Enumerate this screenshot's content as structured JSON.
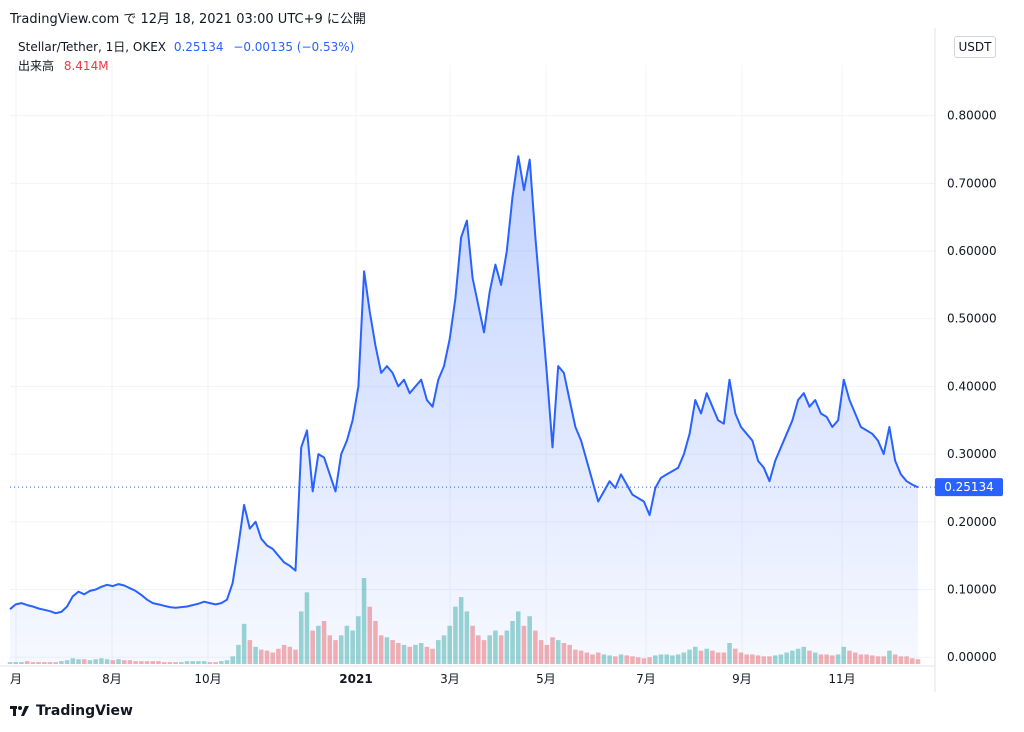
{
  "header": {
    "text": "TradingView.com で 12月 18, 2021 03:00 UTC+9 に公開"
  },
  "legend": {
    "symbol": "Stellar/Tether, 1日, OKEX",
    "last": "0.25134",
    "change": "−0.00135 (−0.53%)"
  },
  "volume": {
    "label": "出来高",
    "value": "8.414M"
  },
  "currency_button": "USDT",
  "brand": "TradingView",
  "colors": {
    "line": "#2962ff",
    "area": "#2962ff",
    "up_volume": "#26a69a",
    "down_volume": "#ef5350",
    "grid": "#f0f3fa"
  },
  "chart_data": {
    "type": "area",
    "x_tick_labels": [
      "月",
      "8月",
      "10月",
      "2021",
      "3月",
      "5月",
      "7月",
      "9月",
      "11月"
    ],
    "y_tick_labels": [
      "0.80000",
      "0.70000",
      "0.60000",
      "0.50000",
      "0.40000",
      "0.30000",
      "0.20000",
      "0.10000",
      "0.00000"
    ],
    "ylim": [
      -0.01,
      0.86
    ],
    "last_value_label": "0.25134",
    "last_value": 0.25134,
    "grid": true,
    "series": [
      {
        "values": [
          0.071,
          0.078,
          0.08,
          0.077,
          0.075,
          0.072,
          0.07,
          0.068,
          0.065,
          0.067,
          0.075,
          0.09,
          0.097,
          0.093,
          0.098,
          0.1,
          0.104,
          0.107,
          0.105,
          0.108,
          0.106,
          0.102,
          0.098,
          0.092,
          0.085,
          0.08,
          0.078,
          0.076,
          0.074,
          0.073,
          0.074,
          0.075,
          0.077,
          0.079,
          0.082,
          0.08,
          0.078,
          0.08,
          0.085,
          0.11,
          0.165,
          0.225,
          0.19,
          0.2,
          0.175,
          0.165,
          0.16,
          0.15,
          0.14,
          0.135,
          0.128,
          0.31,
          0.335,
          0.245,
          0.3,
          0.295,
          0.27,
          0.245,
          0.3,
          0.32,
          0.35,
          0.4,
          0.57,
          0.51,
          0.46,
          0.42,
          0.43,
          0.42,
          0.4,
          0.41,
          0.39,
          0.4,
          0.41,
          0.38,
          0.37,
          0.41,
          0.43,
          0.47,
          0.53,
          0.62,
          0.645,
          0.56,
          0.52,
          0.48,
          0.54,
          0.58,
          0.55,
          0.6,
          0.68,
          0.74,
          0.69,
          0.735,
          0.62,
          0.52,
          0.42,
          0.31,
          0.43,
          0.42,
          0.38,
          0.34,
          0.32,
          0.29,
          0.26,
          0.23,
          0.245,
          0.26,
          0.25,
          0.27,
          0.255,
          0.24,
          0.235,
          0.23,
          0.21,
          0.25,
          0.265,
          0.27,
          0.275,
          0.28,
          0.3,
          0.33,
          0.38,
          0.36,
          0.39,
          0.37,
          0.35,
          0.345,
          0.41,
          0.36,
          0.34,
          0.33,
          0.32,
          0.29,
          0.28,
          0.26,
          0.29,
          0.31,
          0.33,
          0.35,
          0.38,
          0.39,
          0.37,
          0.38,
          0.36,
          0.355,
          0.34,
          0.35,
          0.41,
          0.38,
          0.36,
          0.34,
          0.335,
          0.33,
          0.32,
          0.3,
          0.34,
          0.29,
          0.27,
          0.26,
          0.255,
          0.251
        ]
      }
    ],
    "volume": [
      0.02,
      0.02,
      0.02,
      0.03,
      0.02,
      0.02,
      0.02,
      0.02,
      0.02,
      0.03,
      0.04,
      0.06,
      0.05,
      0.05,
      0.04,
      0.05,
      0.06,
      0.05,
      0.04,
      0.05,
      0.04,
      0.04,
      0.03,
      0.03,
      0.03,
      0.03,
      0.03,
      0.02,
      0.02,
      0.02,
      0.02,
      0.03,
      0.03,
      0.03,
      0.03,
      0.02,
      0.02,
      0.03,
      0.04,
      0.08,
      0.2,
      0.42,
      0.25,
      0.18,
      0.15,
      0.14,
      0.12,
      0.16,
      0.2,
      0.18,
      0.15,
      0.55,
      0.75,
      0.35,
      0.4,
      0.45,
      0.3,
      0.25,
      0.3,
      0.4,
      0.35,
      0.5,
      0.9,
      0.6,
      0.45,
      0.3,
      0.28,
      0.25,
      0.22,
      0.2,
      0.18,
      0.2,
      0.22,
      0.18,
      0.16,
      0.25,
      0.3,
      0.4,
      0.6,
      0.7,
      0.55,
      0.4,
      0.3,
      0.25,
      0.3,
      0.35,
      0.3,
      0.35,
      0.45,
      0.55,
      0.4,
      0.5,
      0.35,
      0.25,
      0.2,
      0.28,
      0.25,
      0.22,
      0.2,
      0.15,
      0.14,
      0.12,
      0.1,
      0.12,
      0.1,
      0.09,
      0.08,
      0.1,
      0.09,
      0.08,
      0.07,
      0.06,
      0.07,
      0.09,
      0.1,
      0.1,
      0.09,
      0.1,
      0.12,
      0.15,
      0.18,
      0.14,
      0.16,
      0.14,
      0.12,
      0.12,
      0.22,
      0.16,
      0.12,
      0.1,
      0.1,
      0.09,
      0.08,
      0.08,
      0.09,
      0.1,
      0.12,
      0.14,
      0.16,
      0.18,
      0.14,
      0.12,
      0.1,
      0.1,
      0.09,
      0.1,
      0.18,
      0.14,
      0.12,
      0.1,
      0.1,
      0.09,
      0.08,
      0.08,
      0.14,
      0.1,
      0.08,
      0.08,
      0.06,
      0.05
    ]
  }
}
